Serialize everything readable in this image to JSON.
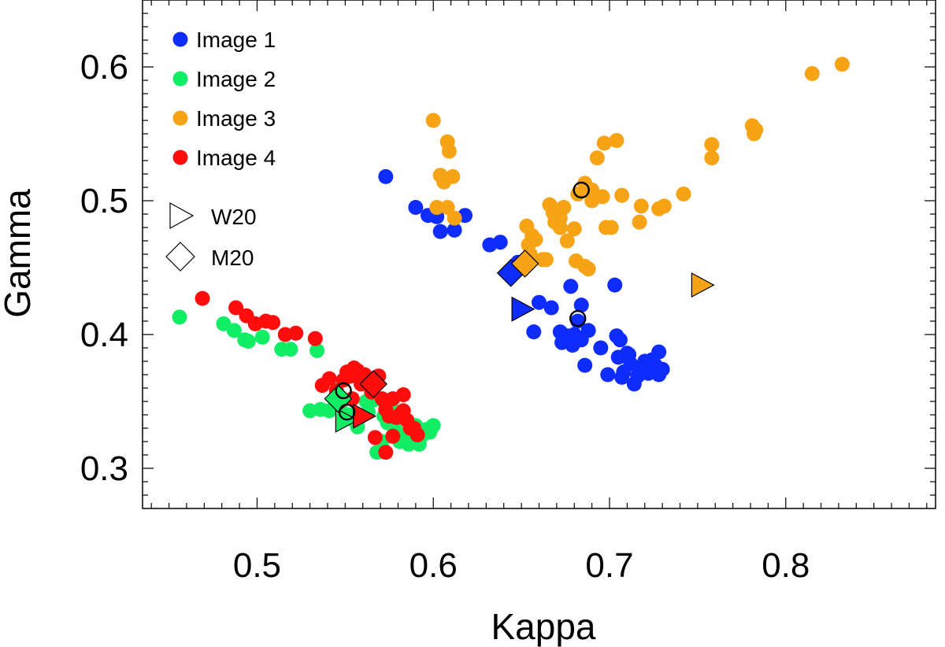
{
  "chart_data": {
    "type": "scatter",
    "xlabel": "Kappa",
    "ylabel": "Gamma",
    "xlim": [
      0.435,
      0.885
    ],
    "ylim": [
      0.27,
      0.65
    ],
    "x_ticks": [
      0.5,
      0.6,
      0.7,
      0.8
    ],
    "x_tick_labels": [
      "0.5",
      "0.6",
      "0.7",
      "0.8"
    ],
    "y_ticks": [
      0.3,
      0.4,
      0.5,
      0.6
    ],
    "y_tick_labels": [
      "0.3",
      "0.4",
      "0.5",
      "0.6"
    ],
    "legend": {
      "placement": "top-left",
      "series_labels": [
        "Image 1",
        "Image 2",
        "Image 3",
        "Image 4"
      ],
      "marker_labels": [
        "W20",
        "M20"
      ]
    },
    "series": [
      {
        "name": "Image 1",
        "color": "#0f2cff",
        "points": [
          [
            0.573,
            0.518
          ],
          [
            0.59,
            0.495
          ],
          [
            0.597,
            0.489
          ],
          [
            0.604,
            0.477
          ],
          [
            0.612,
            0.478
          ],
          [
            0.602,
            0.488
          ],
          [
            0.618,
            0.489
          ],
          [
            0.632,
            0.467
          ],
          [
            0.638,
            0.469
          ],
          [
            0.648,
            0.454
          ],
          [
            0.66,
            0.424
          ],
          [
            0.667,
            0.42
          ],
          [
            0.657,
            0.402
          ],
          [
            0.672,
            0.402
          ],
          [
            0.676,
            0.399
          ],
          [
            0.679,
            0.392
          ],
          [
            0.684,
            0.396
          ],
          [
            0.688,
            0.403
          ],
          [
            0.684,
            0.422
          ],
          [
            0.678,
            0.436
          ],
          [
            0.682,
            0.41
          ],
          [
            0.673,
            0.394
          ],
          [
            0.686,
            0.377
          ],
          [
            0.695,
            0.39
          ],
          [
            0.699,
            0.37
          ],
          [
            0.703,
            0.437
          ],
          [
            0.704,
            0.399
          ],
          [
            0.706,
            0.396
          ],
          [
            0.705,
            0.383
          ],
          [
            0.708,
            0.372
          ],
          [
            0.71,
            0.386
          ],
          [
            0.712,
            0.378
          ],
          [
            0.714,
            0.363
          ],
          [
            0.716,
            0.369
          ],
          [
            0.718,
            0.373
          ],
          [
            0.72,
            0.38
          ],
          [
            0.722,
            0.371
          ],
          [
            0.724,
            0.381
          ],
          [
            0.726,
            0.377
          ],
          [
            0.728,
            0.387
          ],
          [
            0.73,
            0.374
          ],
          [
            0.728,
            0.37
          ],
          [
            0.711,
            0.385
          ],
          [
            0.707,
            0.368
          ],
          [
            0.68,
            0.4
          ]
        ]
      },
      {
        "name": "Image 2",
        "color": "#11ee66",
        "points": [
          [
            0.456,
            0.413
          ],
          [
            0.481,
            0.408
          ],
          [
            0.487,
            0.403
          ],
          [
            0.493,
            0.396
          ],
          [
            0.495,
            0.395
          ],
          [
            0.503,
            0.398
          ],
          [
            0.514,
            0.389
          ],
          [
            0.519,
            0.389
          ],
          [
            0.534,
            0.388
          ],
          [
            0.53,
            0.343
          ],
          [
            0.536,
            0.344
          ],
          [
            0.541,
            0.343
          ],
          [
            0.547,
            0.345
          ],
          [
            0.552,
            0.34
          ],
          [
            0.555,
            0.336
          ],
          [
            0.559,
            0.339
          ],
          [
            0.562,
            0.35
          ],
          [
            0.566,
            0.351
          ],
          [
            0.569,
            0.352
          ],
          [
            0.572,
            0.339
          ],
          [
            0.574,
            0.334
          ],
          [
            0.577,
            0.337
          ],
          [
            0.579,
            0.328
          ],
          [
            0.581,
            0.32
          ],
          [
            0.584,
            0.322
          ],
          [
            0.586,
            0.318
          ],
          [
            0.588,
            0.325
          ],
          [
            0.59,
            0.332
          ],
          [
            0.592,
            0.318
          ],
          [
            0.594,
            0.325
          ],
          [
            0.596,
            0.329
          ],
          [
            0.598,
            0.327
          ],
          [
            0.6,
            0.332
          ],
          [
            0.568,
            0.312
          ],
          [
            0.571,
            0.32
          ],
          [
            0.557,
            0.331
          ],
          [
            0.563,
            0.342
          ],
          [
            0.576,
            0.345
          ]
        ]
      },
      {
        "name": "Image 3",
        "color": "#f6a415",
        "points": [
          [
            0.6,
            0.56
          ],
          [
            0.608,
            0.544
          ],
          [
            0.609,
            0.537
          ],
          [
            0.604,
            0.519
          ],
          [
            0.606,
            0.514
          ],
          [
            0.611,
            0.518
          ],
          [
            0.602,
            0.495
          ],
          [
            0.608,
            0.495
          ],
          [
            0.612,
            0.487
          ],
          [
            0.653,
            0.481
          ],
          [
            0.654,
            0.467
          ],
          [
            0.656,
            0.474
          ],
          [
            0.658,
            0.471
          ],
          [
            0.655,
            0.46
          ],
          [
            0.662,
            0.456
          ],
          [
            0.664,
            0.456
          ],
          [
            0.666,
            0.497
          ],
          [
            0.668,
            0.491
          ],
          [
            0.67,
            0.493
          ],
          [
            0.672,
            0.487
          ],
          [
            0.674,
            0.495
          ],
          [
            0.669,
            0.484
          ],
          [
            0.672,
            0.48
          ],
          [
            0.676,
            0.47
          ],
          [
            0.68,
            0.479
          ],
          [
            0.682,
            0.505
          ],
          [
            0.686,
            0.513
          ],
          [
            0.69,
            0.508
          ],
          [
            0.693,
            0.532
          ],
          [
            0.697,
            0.543
          ],
          [
            0.704,
            0.545
          ],
          [
            0.69,
            0.5
          ],
          [
            0.696,
            0.503
          ],
          [
            0.698,
            0.48
          ],
          [
            0.701,
            0.48
          ],
          [
            0.681,
            0.455
          ],
          [
            0.686,
            0.451
          ],
          [
            0.688,
            0.449
          ],
          [
            0.707,
            0.504
          ],
          [
            0.717,
            0.484
          ],
          [
            0.718,
            0.496
          ],
          [
            0.728,
            0.494
          ],
          [
            0.731,
            0.496
          ],
          [
            0.742,
            0.505
          ],
          [
            0.758,
            0.542
          ],
          [
            0.758,
            0.532
          ],
          [
            0.781,
            0.556
          ],
          [
            0.783,
            0.553
          ],
          [
            0.782,
            0.55
          ],
          [
            0.815,
            0.595
          ],
          [
            0.832,
            0.602
          ]
        ]
      },
      {
        "name": "Image 4",
        "color": "#ff0d0d",
        "points": [
          [
            0.469,
            0.427
          ],
          [
            0.488,
            0.42
          ],
          [
            0.494,
            0.414
          ],
          [
            0.499,
            0.408
          ],
          [
            0.505,
            0.41
          ],
          [
            0.509,
            0.409
          ],
          [
            0.516,
            0.4
          ],
          [
            0.522,
            0.401
          ],
          [
            0.533,
            0.397
          ],
          [
            0.537,
            0.362
          ],
          [
            0.541,
            0.367
          ],
          [
            0.545,
            0.358
          ],
          [
            0.549,
            0.366
          ],
          [
            0.551,
            0.372
          ],
          [
            0.553,
            0.369
          ],
          [
            0.555,
            0.375
          ],
          [
            0.557,
            0.373
          ],
          [
            0.559,
            0.363
          ],
          [
            0.561,
            0.37
          ],
          [
            0.563,
            0.367
          ],
          [
            0.565,
            0.357
          ],
          [
            0.567,
            0.363
          ],
          [
            0.569,
            0.369
          ],
          [
            0.571,
            0.352
          ],
          [
            0.573,
            0.344
          ],
          [
            0.575,
            0.339
          ],
          [
            0.577,
            0.352
          ],
          [
            0.579,
            0.338
          ],
          [
            0.581,
            0.34
          ],
          [
            0.583,
            0.343
          ],
          [
            0.585,
            0.336
          ],
          [
            0.587,
            0.33
          ],
          [
            0.589,
            0.33
          ],
          [
            0.591,
            0.325
          ],
          [
            0.577,
            0.324
          ],
          [
            0.573,
            0.312
          ],
          [
            0.567,
            0.323
          ],
          [
            0.583,
            0.355
          ],
          [
            0.554,
            0.352
          ],
          [
            0.547,
            0.35
          ]
        ]
      }
    ],
    "special_markers": [
      {
        "series": "Image 1",
        "marker": "W20",
        "x": 0.65,
        "y": 0.419
      },
      {
        "series": "Image 1",
        "marker": "M20",
        "x": 0.644,
        "y": 0.446
      },
      {
        "series": "Image 2",
        "marker": "W20",
        "x": 0.55,
        "y": 0.336
      },
      {
        "series": "Image 2",
        "marker": "M20",
        "x": 0.546,
        "y": 0.352
      },
      {
        "series": "Image 3",
        "marker": "W20",
        "x": 0.752,
        "y": 0.437
      },
      {
        "series": "Image 3",
        "marker": "M20",
        "x": 0.652,
        "y": 0.453
      },
      {
        "series": "Image 4",
        "marker": "W20",
        "x": 0.56,
        "y": 0.339
      },
      {
        "series": "Image 4",
        "marker": "M20",
        "x": 0.566,
        "y": 0.363
      }
    ],
    "open_circles": [
      [
        0.549,
        0.358
      ],
      [
        0.551,
        0.342
      ],
      [
        0.682,
        0.412
      ],
      [
        0.684,
        0.508
      ]
    ]
  }
}
